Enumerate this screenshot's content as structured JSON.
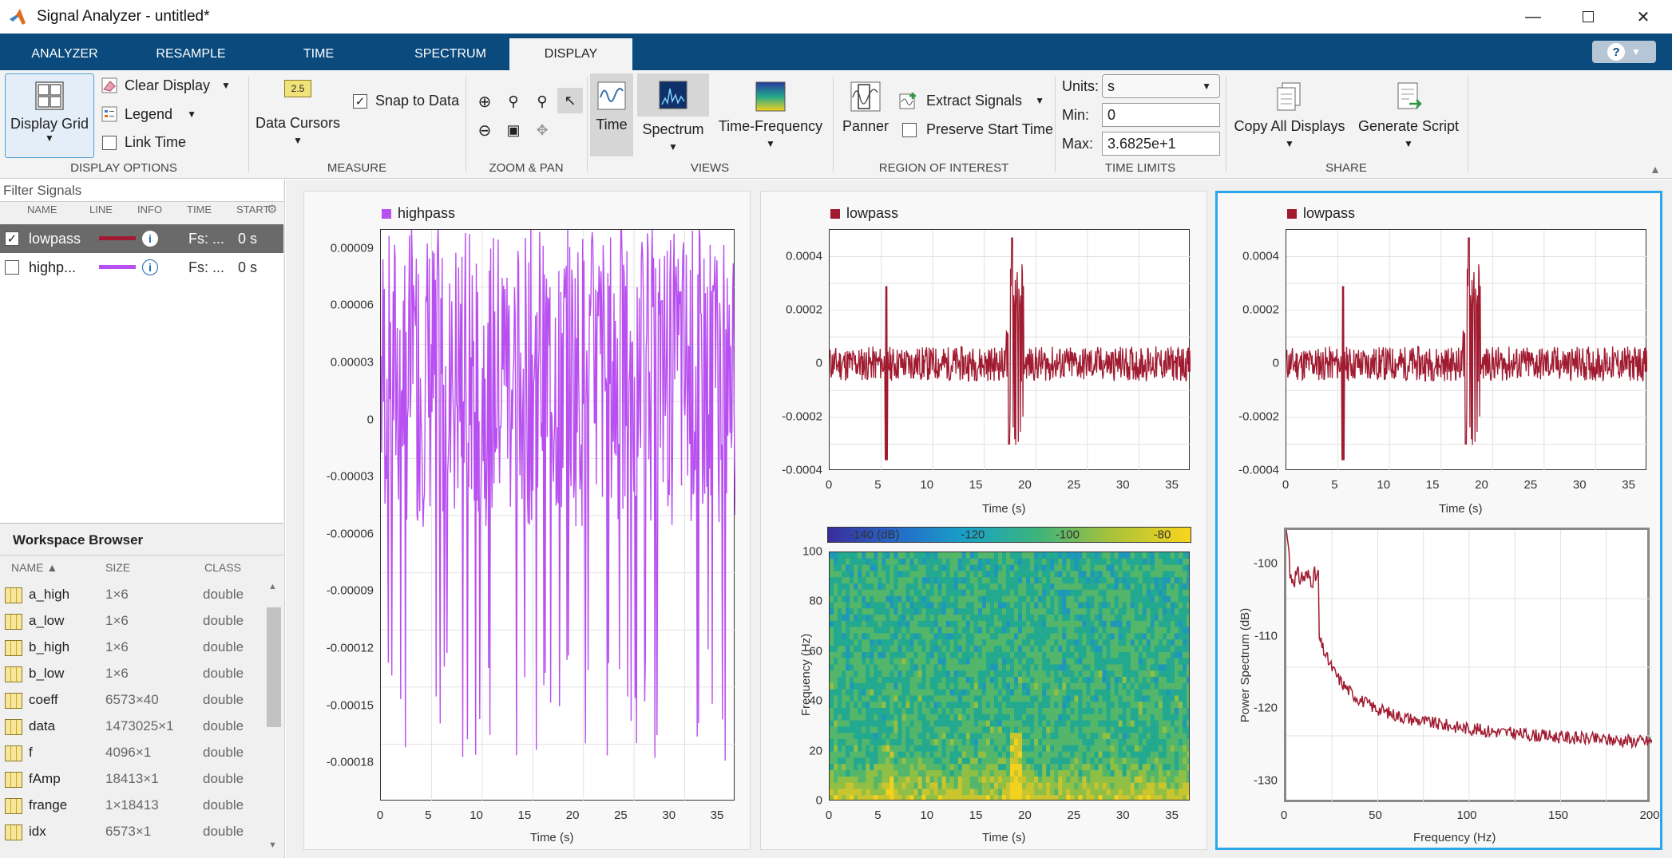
{
  "window": {
    "title": "Signal Analyzer - untitled*"
  },
  "tabs": [
    "ANALYZER",
    "RESAMPLE",
    "TIME",
    "SPECTRUM",
    "DISPLAY"
  ],
  "ribbon": {
    "display_options": {
      "display_grid": "Display Grid",
      "clear_display": "Clear Display",
      "legend": "Legend",
      "link_time": "Link Time",
      "group": "DISPLAY OPTIONS"
    },
    "measure": {
      "data_cursors": "Data Cursors",
      "snap_to_data": "Snap to Data",
      "group": "MEASURE",
      "cursor_icon_text": "2.5"
    },
    "zoom_pan": {
      "group": "ZOOM & PAN"
    },
    "views": {
      "time": "Time",
      "spectrum": "Spectrum",
      "time_frequency": "Time-Frequency",
      "group": "VIEWS"
    },
    "roi": {
      "panner": "Panner",
      "extract_signals": "Extract Signals",
      "preserve_start_time": "Preserve Start Time",
      "group": "REGION OF INTEREST"
    },
    "time_limits": {
      "units_label": "Units:",
      "units_value": "s",
      "min_label": "Min:",
      "min_value": "0",
      "max_label": "Max:",
      "max_value": "3.6825e+1",
      "group": "TIME LIMITS"
    },
    "share": {
      "copy_all": "Copy All Displays",
      "generate_script": "Generate Script",
      "group": "SHARE"
    }
  },
  "signals": {
    "filter_placeholder": "Filter Signals",
    "headers": [
      "NAME",
      "LINE",
      "INFO",
      "TIME",
      "START"
    ],
    "rows": [
      {
        "name": "lowpass",
        "time": "Fs: ...",
        "start": "0 s",
        "color": "#a01a30",
        "checked": true
      },
      {
        "name": "highp...",
        "time": "Fs: ...",
        "start": "0 s",
        "color": "#b84ff0",
        "checked": false
      }
    ]
  },
  "workspace": {
    "title": "Workspace Browser",
    "headers": [
      "NAME",
      "SIZE",
      "CLASS"
    ],
    "rows": [
      {
        "name": "a_high",
        "size": "1×6",
        "class": "double"
      },
      {
        "name": "a_low",
        "size": "1×6",
        "class": "double"
      },
      {
        "name": "b_high",
        "size": "1×6",
        "class": "double"
      },
      {
        "name": "b_low",
        "size": "1×6",
        "class": "double"
      },
      {
        "name": "coeff",
        "size": "6573×40",
        "class": "double"
      },
      {
        "name": "data",
        "size": "1473025×1",
        "class": "double"
      },
      {
        "name": "f",
        "size": "4096×1",
        "class": "double"
      },
      {
        "name": "fAmp",
        "size": "18413×1",
        "class": "double"
      },
      {
        "name": "frange",
        "size": "1×18413",
        "class": "double"
      },
      {
        "name": "idx",
        "size": "6573×1",
        "class": "double"
      }
    ]
  },
  "colors": {
    "lowpass": "#a01a30",
    "highpass": "#b84ff0",
    "accent": "#0a4a7d",
    "selection": "#2aa6ea"
  },
  "chart_data": [
    {
      "type": "line",
      "legend": "highpass",
      "xlabel": "Time (s)",
      "ylabel": "",
      "x_ticks": [
        "0",
        "5",
        "10",
        "15",
        "20",
        "25",
        "30",
        "35"
      ],
      "y_ticks": [
        "0.00009",
        "0.00006",
        "0.00003",
        "0",
        "-0.00003",
        "-0.00006",
        "-0.00009",
        "-0.00012",
        "-0.00015",
        "-0.00018"
      ],
      "xlim": [
        0,
        36.825
      ],
      "ylim": [
        -0.0002,
        0.0001
      ]
    },
    {
      "type": "line",
      "legend": "lowpass",
      "xlabel": "Time (s)",
      "ylabel": "",
      "x_ticks": [
        "0",
        "5",
        "10",
        "15",
        "20",
        "25",
        "30",
        "35"
      ],
      "y_ticks": [
        "0.0004",
        "0.0002",
        "0",
        "-0.0002",
        "-0.0004"
      ],
      "xlim": [
        0,
        36.825
      ],
      "ylim": [
        -0.0004,
        0.0005
      ]
    },
    {
      "type": "heatmap",
      "xlabel": "Time (s)",
      "ylabel": "Frequency (Hz)",
      "x_ticks": [
        "0",
        "5",
        "10",
        "15",
        "20",
        "25",
        "30",
        "35"
      ],
      "y_ticks": [
        "100",
        "80",
        "60",
        "40",
        "20",
        "0"
      ],
      "colorbar_ticks": [
        "-140 (dB)",
        "-120",
        "-100",
        "-80"
      ],
      "xlim": [
        0,
        36.825
      ],
      "ylim": [
        0,
        100
      ]
    },
    {
      "type": "line",
      "legend": "lowpass",
      "xlabel": "Time (s)",
      "ylabel": "",
      "x_ticks": [
        "0",
        "5",
        "10",
        "15",
        "20",
        "25",
        "30",
        "35"
      ],
      "y_ticks": [
        "0.0004",
        "0.0002",
        "0",
        "-0.0002",
        "-0.0004"
      ],
      "xlim": [
        0,
        36.825
      ],
      "ylim": [
        -0.0004,
        0.0005
      ]
    },
    {
      "type": "line",
      "xlabel": "Frequency (Hz)",
      "ylabel": "Power Spectrum (dB)",
      "x_ticks": [
        "0",
        "50",
        "100",
        "150",
        "200"
      ],
      "y_ticks": [
        "-100",
        "-110",
        "-120",
        "-130"
      ],
      "xlim": [
        0,
        200
      ],
      "ylim": [
        -133,
        -95
      ]
    }
  ]
}
